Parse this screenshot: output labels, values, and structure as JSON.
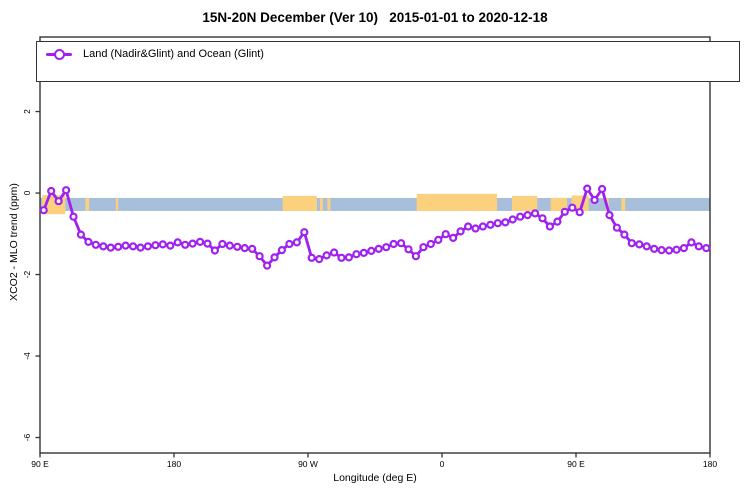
{
  "title": "15N-20N December (Ver 10)   2015-01-01 to 2020-12-18",
  "axes": {
    "xlabel": "Longitude (deg E)",
    "ylabel": "XCO2 - MLO trend (ppm)"
  },
  "legend": {
    "label": "Land (Nadir&Glint) and Ocean (Glint)"
  },
  "colors": {
    "series_purple": "#A020F0",
    "ocean_band_blue": "#A8BFDC",
    "land_band_orange": "#FBD17E",
    "axis_line": "#333333",
    "text": "#000000"
  },
  "chart_data": {
    "type": "line",
    "title": "15N-20N December (Ver 10)   2015-01-01 to 2020-12-18",
    "xlabel": "Longitude (deg E)",
    "ylabel": "XCO2 - MLO trend (ppm)",
    "xlim": [
      90,
      540
    ],
    "ylim": [
      -6.38,
      3.83
    ],
    "grid": false,
    "legend_position": "top-left-wide-box",
    "x_ticks": [
      {
        "x": 90,
        "label": "90 E"
      },
      {
        "x": 180,
        "label": "180"
      },
      {
        "x": 270,
        "label": "90 W"
      },
      {
        "x": 360,
        "label": "0"
      },
      {
        "x": 450,
        "label": "90 E"
      },
      {
        "x": 540,
        "label": "180"
      }
    ],
    "y_ticks": [
      {
        "y": 2,
        "label": "2"
      },
      {
        "y": 0,
        "label": "0"
      },
      {
        "y": -2,
        "label": "-2"
      },
      {
        "y": -4,
        "label": "-4"
      },
      {
        "y": -6,
        "label": "-6"
      }
    ],
    "map_band": {
      "description": "land/ocean strip drawn along the zonal band near y=0 to -0.44 ppm",
      "y_top": -0.12,
      "y_bottom": -0.44,
      "ocean_color": "#A8BFDC",
      "land_color": "#FBD17E",
      "land_segments": [
        {
          "from": 91.5,
          "to": 107,
          "top": -0.05,
          "bottom": -0.52
        },
        {
          "from": 120.5,
          "to": 123
        },
        {
          "from": 141,
          "to": 142.5
        },
        {
          "from": 253,
          "to": 276,
          "top": -0.07
        },
        {
          "from": 278,
          "to": 280
        },
        {
          "from": 283,
          "to": 285
        },
        {
          "from": 343,
          "to": 397,
          "top": -0.02
        },
        {
          "from": 407,
          "to": 424,
          "top": -0.07
        },
        {
          "from": 433,
          "to": 444
        },
        {
          "from": 447,
          "to": 458.5,
          "top": -0.06
        },
        {
          "from": 470,
          "to": 472
        },
        {
          "from": 480.5,
          "to": 483
        }
      ]
    },
    "series": [
      {
        "name": "Land (Nadir&Glint) and Ocean (Glint)",
        "color": "#A020F0",
        "marker": "open-circle",
        "x_start": 92.5,
        "x_step": 5,
        "values": [
          -0.42,
          0.05,
          -0.2,
          0.07,
          -0.58,
          -1.02,
          -1.2,
          -1.27,
          -1.31,
          -1.34,
          -1.32,
          -1.29,
          -1.31,
          -1.34,
          -1.31,
          -1.28,
          -1.26,
          -1.29,
          -1.21,
          -1.27,
          -1.24,
          -1.2,
          -1.24,
          -1.41,
          -1.25,
          -1.29,
          -1.32,
          -1.35,
          -1.37,
          -1.55,
          -1.78,
          -1.58,
          -1.4,
          -1.25,
          -1.21,
          -0.96,
          -1.59,
          -1.62,
          -1.53,
          -1.46,
          -1.59,
          -1.58,
          -1.5,
          -1.47,
          -1.42,
          -1.37,
          -1.33,
          -1.25,
          -1.23,
          -1.38,
          -1.55,
          -1.33,
          -1.25,
          -1.15,
          -1.01,
          -1.1,
          -0.94,
          -0.82,
          -0.87,
          -0.82,
          -0.78,
          -0.74,
          -0.72,
          -0.65,
          -0.58,
          -0.54,
          -0.5,
          -0.62,
          -0.82,
          -0.7,
          -0.46,
          -0.36,
          -0.47,
          0.11,
          -0.17,
          0.1,
          -0.54,
          -0.85,
          -1.02,
          -1.23,
          -1.26,
          -1.31,
          -1.37,
          -1.4,
          -1.41,
          -1.39,
          -1.35,
          -1.21,
          -1.31,
          -1.35
        ]
      }
    ]
  }
}
